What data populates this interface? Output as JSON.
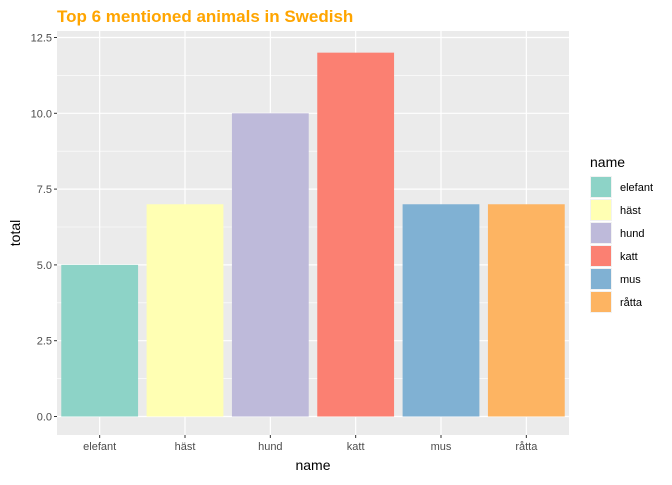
{
  "chart_data": {
    "type": "bar",
    "title": "Top 6 mentioned animals in Swedish",
    "xlabel": "name",
    "ylabel": "total",
    "categories": [
      "elefant",
      "häst",
      "hund",
      "katt",
      "mus",
      "råtta"
    ],
    "values": [
      5,
      7,
      10,
      12,
      7,
      7
    ],
    "colors": [
      "#8DD3C7",
      "#FFFFB3",
      "#BEBADA",
      "#FB8072",
      "#80B1D3",
      "#FDB462"
    ],
    "ylim": [
      0,
      12.5
    ],
    "yticks": [
      0,
      2.5,
      5,
      7.5,
      10,
      12.5
    ],
    "ytick_labels": [
      "0.0",
      "2.5",
      "5.0",
      "7.5",
      "10.0",
      "12.5"
    ],
    "grid": true,
    "legend": {
      "title": "name",
      "placement": "right",
      "entries": [
        "elefant",
        "häst",
        "hund",
        "katt",
        "mus",
        "råtta"
      ]
    },
    "title_color": "#FFA500",
    "panel_background": "#EBEBEB",
    "grid_color": "#FFFFFF"
  }
}
